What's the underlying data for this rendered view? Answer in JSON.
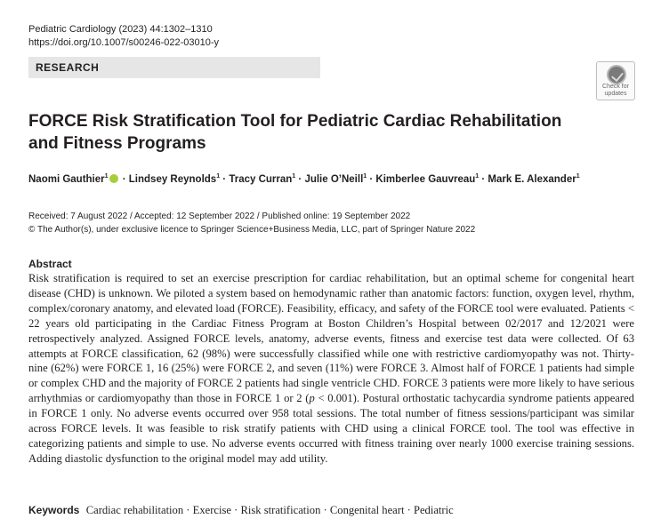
{
  "journal": {
    "citation": "Pediatric Cardiology (2023) 44:1302–1310",
    "doi": "https://doi.org/10.1007/s00246-022-03010-y"
  },
  "section_label": "RESEARCH",
  "check_updates": {
    "line1": "Check for",
    "line2": "updates"
  },
  "title": {
    "line1": "FORCE Risk Stratification Tool for Pediatric Cardiac Rehabilitation",
    "line2": "and Fitness Programs"
  },
  "authors": [
    {
      "name": "Naomi Gauthier",
      "aff": "1"
    },
    {
      "name": "Lindsey Reynolds",
      "aff": "1"
    },
    {
      "name": "Tracy Curran",
      "aff": "1"
    },
    {
      "name": "Julie O’Neill",
      "aff": "1"
    },
    {
      "name": "Kimberlee Gauvreau",
      "aff": "1"
    },
    {
      "name": "Mark E. Alexander",
      "aff": "1"
    }
  ],
  "separator": " · ",
  "dates": {
    "line1": "Received: 7 August 2022 / Accepted: 12 September 2022 / Published online: 19 September 2022",
    "line2": "© The Author(s), under exclusive licence to Springer Science+Business Media, LLC, part of Springer Nature 2022"
  },
  "abstract": {
    "heading": "Abstract",
    "part1": "Risk stratification is required to set an exercise prescription for cardiac rehabilitation, but an optimal scheme for congenital heart disease (CHD) is unknown. We piloted a system based on hemodynamic rather than anatomic factors: function, oxygen level, rhythm, complex/coronary anatomy, and elevated load (FORCE). Feasibility, efficacy, and safety of the FORCE tool were evaluated. Patients < 22 years old participating in the Cardiac Fitness Program at Boston Children’s Hospital between 02/2017 and 12/2021 were retrospectively analyzed. Assigned FORCE levels, anatomy, adverse events, fitness and exercise test data were collected. Of 63 attempts at FORCE classification, 62 (98%) were successfully classified while one with restrictive cardiomyopathy was not. Thirty-nine (62%) were FORCE 1, 16 (25%) were FORCE 2, and seven (11%) were FORCE 3. Almost half of FORCE 1 patients had simple or complex CHD and the majority of FORCE 2 patients had single ventricle CHD. FORCE 3 patients were more likely to have serious arrhythmias or cardiomyopathy than those in FORCE 1 or 2 (",
    "p_symbol": "p",
    "part2": " < 0.001). Postural orthostatic tachycardia syndrome patients appeared in FORCE 1 only. No adverse events occurred over 958 total sessions. The total number of fitness sessions/participant was similar across FORCE levels. It was feasible to risk stratify patients with CHD using a clinical FORCE tool. The tool was effective in categorizing patients and simple to use. No adverse events occurred with fitness training over nearly 1000 exercise training sessions. Adding diastolic dysfunction to the original model may add utility."
  },
  "keywords": {
    "label": "Keywords",
    "text": "Cardiac rehabilitation · Exercise · Risk stratification · Congenital heart · Pediatric"
  },
  "colors": {
    "text": "#231f20",
    "section_bar": "#e6e6e6",
    "orcid": "#a6ce39"
  }
}
